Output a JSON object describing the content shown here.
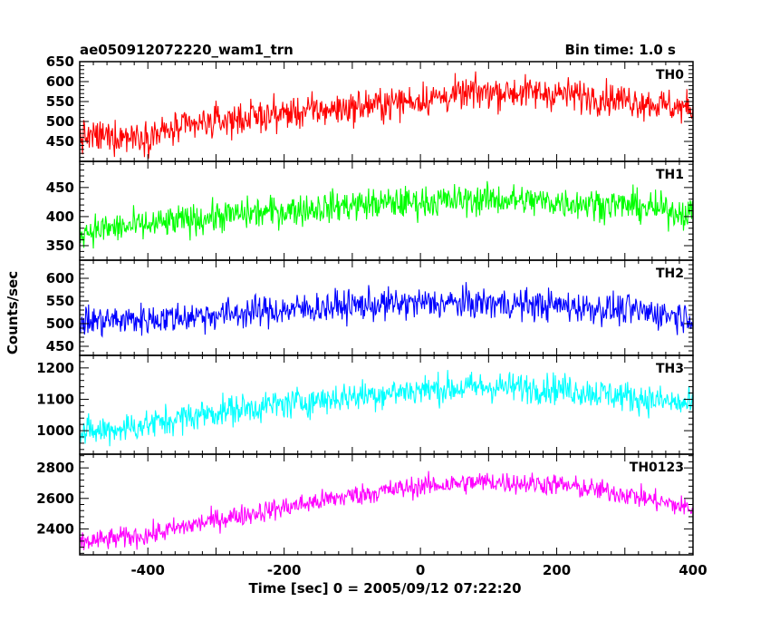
{
  "title_left": "ae050912072220_wam1_trn",
  "title_right": "Bin time: 1.0 s",
  "xlabel": "Time [sec] 0 = 2005/09/12 07:22:20",
  "ylabel": "Counts/sec",
  "chart_data": {
    "type": "line",
    "x_range": [
      -500,
      400
    ],
    "x_ticks": [
      -400,
      -200,
      0,
      200,
      400
    ],
    "bin_time_s": 1.0,
    "grid": false,
    "panels": [
      {
        "name": "TH0",
        "color": "#ff0000",
        "ylim": [
          400,
          650
        ],
        "y_ticks": [
          450,
          500,
          550,
          600,
          650
        ],
        "trend": [
          [
            -500,
            460
          ],
          [
            -400,
            465
          ],
          [
            -300,
            500
          ],
          [
            -200,
            520
          ],
          [
            -100,
            535
          ],
          [
            0,
            555
          ],
          [
            100,
            575
          ],
          [
            200,
            570
          ],
          [
            300,
            555
          ],
          [
            400,
            530
          ]
        ],
        "noise": 38
      },
      {
        "name": "TH1",
        "color": "#00ff00",
        "ylim": [
          325,
          495
        ],
        "y_ticks": [
          350,
          400,
          450
        ],
        "trend": [
          [
            -500,
            375
          ],
          [
            -400,
            385
          ],
          [
            -300,
            400
          ],
          [
            -200,
            410
          ],
          [
            -100,
            420
          ],
          [
            0,
            425
          ],
          [
            100,
            430
          ],
          [
            200,
            425
          ],
          [
            300,
            420
          ],
          [
            400,
            405
          ]
        ],
        "noise": 25
      },
      {
        "name": "TH2",
        "color": "#0000ff",
        "ylim": [
          430,
          640
        ],
        "y_ticks": [
          450,
          500,
          550,
          600
        ],
        "trend": [
          [
            -500,
            505
          ],
          [
            -400,
            510
          ],
          [
            -300,
            520
          ],
          [
            -200,
            530
          ],
          [
            -100,
            540
          ],
          [
            0,
            545
          ],
          [
            100,
            545
          ],
          [
            200,
            540
          ],
          [
            300,
            530
          ],
          [
            400,
            515
          ]
        ],
        "noise": 32
      },
      {
        "name": "TH3",
        "color": "#00ffff",
        "ylim": [
          925,
          1240
        ],
        "y_ticks": [
          1000,
          1100,
          1200
        ],
        "trend": [
          [
            -500,
            990
          ],
          [
            -400,
            1020
          ],
          [
            -300,
            1060
          ],
          [
            -200,
            1085
          ],
          [
            -100,
            1110
          ],
          [
            0,
            1130
          ],
          [
            100,
            1140
          ],
          [
            200,
            1135
          ],
          [
            300,
            1110
          ],
          [
            400,
            1080
          ]
        ],
        "noise": 45
      },
      {
        "name": "TH0123",
        "color": "#ff00ff",
        "ylim": [
          2230,
          2890
        ],
        "y_ticks": [
          2400,
          2600,
          2800
        ],
        "trend": [
          [
            -500,
            2310
          ],
          [
            -400,
            2360
          ],
          [
            -300,
            2460
          ],
          [
            -200,
            2540
          ],
          [
            -100,
            2620
          ],
          [
            0,
            2680
          ],
          [
            100,
            2710
          ],
          [
            200,
            2690
          ],
          [
            300,
            2630
          ],
          [
            400,
            2530
          ]
        ],
        "noise": 65
      }
    ]
  }
}
